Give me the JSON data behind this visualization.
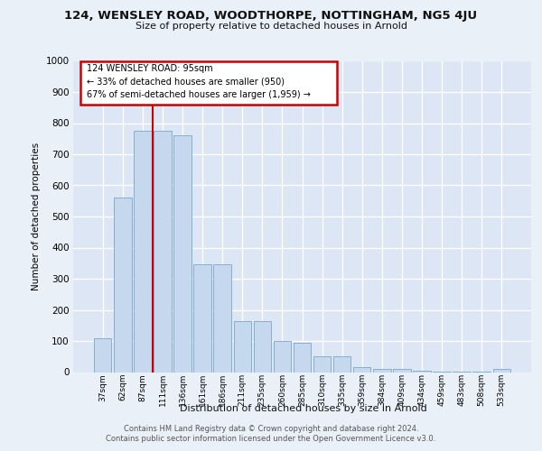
{
  "title_line1": "124, WENSLEY ROAD, WOODTHORPE, NOTTINGHAM, NG5 4JU",
  "title_line2": "Size of property relative to detached houses in Arnold",
  "xlabel": "Distribution of detached houses by size in Arnold",
  "ylabel": "Number of detached properties",
  "categories": [
    "37sqm",
    "62sqm",
    "87sqm",
    "111sqm",
    "136sqm",
    "161sqm",
    "186sqm",
    "211sqm",
    "235sqm",
    "260sqm",
    "285sqm",
    "310sqm",
    "335sqm",
    "359sqm",
    "384sqm",
    "409sqm",
    "434sqm",
    "459sqm",
    "483sqm",
    "508sqm",
    "533sqm"
  ],
  "bar_values": [
    110,
    560,
    775,
    775,
    760,
    345,
    345,
    165,
    165,
    100,
    95,
    50,
    50,
    15,
    10,
    10,
    5,
    2,
    2,
    2,
    10
  ],
  "bar_color": "#c5d8ee",
  "bar_edge_color": "#85aece",
  "background_color": "#dce6f5",
  "grid_color": "#f0f4fc",
  "fig_bg_color": "#eaf0f8",
  "annotation_line1": "124 WENSLEY ROAD: 95sqm",
  "annotation_line2": "← 33% of detached houses are smaller (950)",
  "annotation_line3": "67% of semi-detached houses are larger (1,959) →",
  "red_line_color": "#cc0000",
  "box_edge_color": "#cc0000",
  "box_face_color": "#ffffff",
  "ylim": [
    0,
    1000
  ],
  "yticks": [
    0,
    100,
    200,
    300,
    400,
    500,
    600,
    700,
    800,
    900,
    1000
  ],
  "red_line_x": 2.5,
  "footer_line1": "Contains HM Land Registry data © Crown copyright and database right 2024.",
  "footer_line2": "Contains public sector information licensed under the Open Government Licence v3.0."
}
